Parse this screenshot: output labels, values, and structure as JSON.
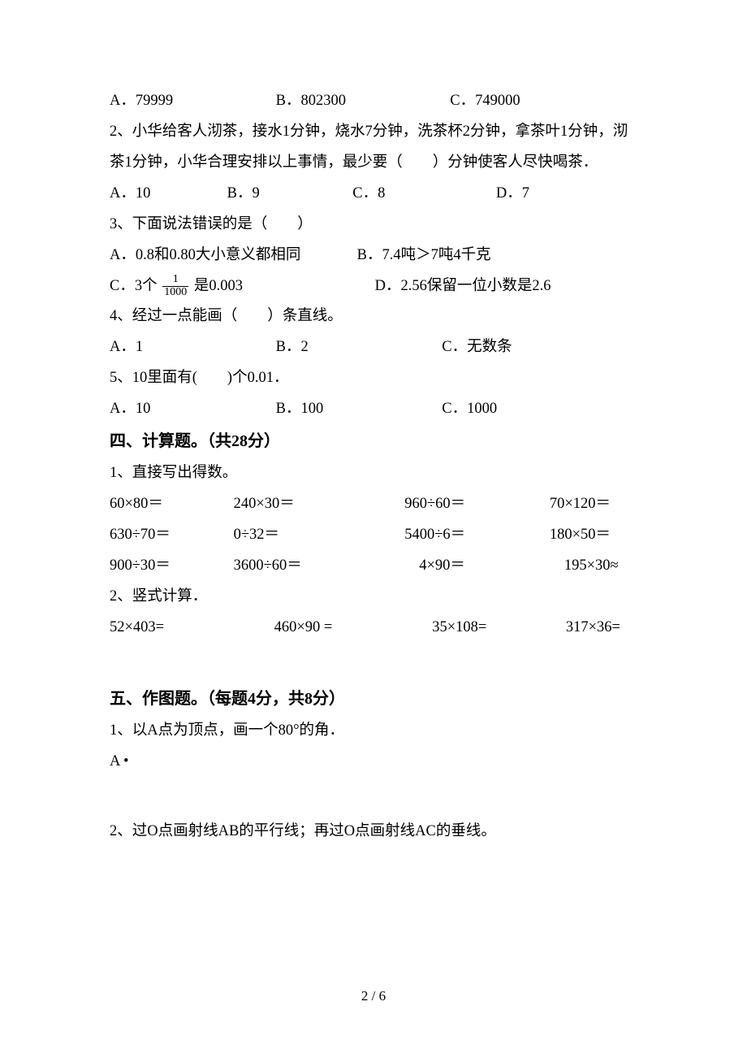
{
  "q1_options": {
    "a": "A．79999",
    "b": "B．802300",
    "c": "C．749000"
  },
  "q2": {
    "text": "2、小华给客人沏茶，接水1分钟，烧水7分钟，洗茶杯2分钟，拿茶叶1分钟，沏茶1分钟，小华合理安排以上事情，最少要（　　）分钟使客人尽快喝茶．",
    "a": "A．10",
    "b": "B．9",
    "c": "C．8",
    "d": "D．7"
  },
  "q3": {
    "stem": "3、下面说法错误的是（　　）",
    "a": "A．0.8和0.80大小意义都相同",
    "b": "B．7.4吨＞7吨4千克",
    "c_pre": "C．3个 ",
    "c_num": "1",
    "c_den": "1000",
    "c_post": " 是0.003",
    "d": "D．2.56保留一位小数是2.6"
  },
  "q4": {
    "stem": "4、经过一点能画（　　）条直线。",
    "a": "A．1",
    "b": "B．2",
    "c": "C．无数条"
  },
  "q5": {
    "stem": "5、10里面有(　　)个0.01．",
    "a": "A．10",
    "b": "B．100",
    "c": "C．1000"
  },
  "sec4": {
    "title": "四、计算题。（共28分）",
    "p1": "1、直接写出得数。",
    "r1": {
      "a": "60×80＝",
      "b": "240×30＝",
      "c": "960÷60＝",
      "d": "70×120＝"
    },
    "r2": {
      "a": "630÷70＝",
      "b": "0÷32＝",
      "c": "5400÷6＝",
      "d": "180×50＝"
    },
    "r3": {
      "a": "900÷30＝",
      "b": "3600÷60＝",
      "c": "4×90＝",
      "d": "195×30≈"
    },
    "p2": "2、竖式计算．",
    "r4": {
      "a": "52×403=",
      "b": "460×90 =",
      "c": "35×108=",
      "d": "317×36="
    }
  },
  "sec5": {
    "title": "五、作图题。（每题4分，共8分）",
    "p1": "1、以A点为顶点，画一个80°的角．",
    "apoint": "A •",
    "p2": "2、过O点画射线AB的平行线；再过O点画射线AC的垂线。"
  },
  "footer": "2 / 6",
  "layout": {
    "opt3_w1": 200,
    "opt3_w2": 140,
    "opt3_w3": 200,
    "opt4_w1": 140,
    "opt4_w2": 150,
    "opt4_w3": 172,
    "q3ab_w1": 300,
    "q3cd_w1": 322,
    "calc_c1": 148,
    "calc_c2": 206,
    "calc_c3": 174,
    "calc2_c1": 198,
    "calc2_c2": 190,
    "calc2_c3": 160
  }
}
